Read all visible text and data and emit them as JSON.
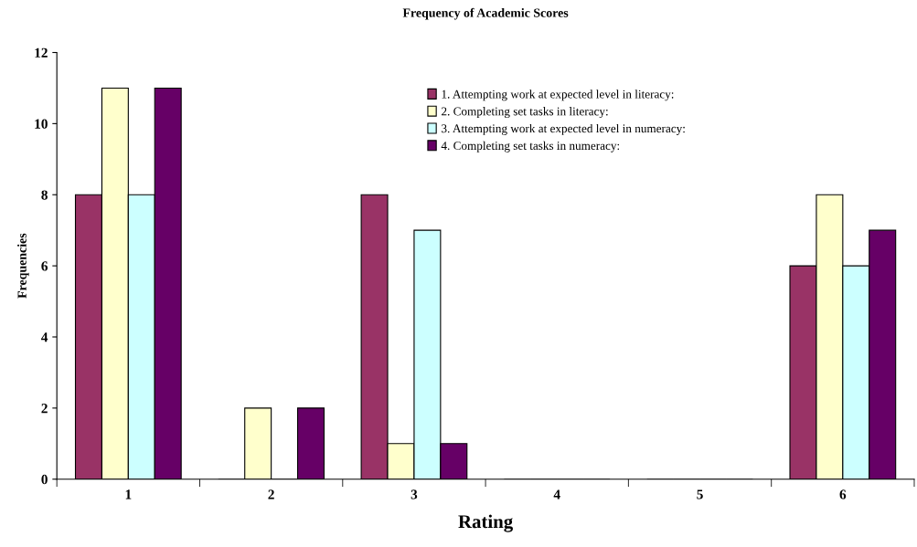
{
  "chart_data": {
    "type": "bar",
    "title": "Frequency of Academic Scores",
    "xlabel": "Rating",
    "ylabel": "Frequencies",
    "categories": [
      "1",
      "2",
      "3",
      "4",
      "5",
      "6"
    ],
    "series": [
      {
        "name": "1. Attempting work at expected level in literacy:",
        "color": "#993366",
        "values": [
          8,
          0,
          8,
          0,
          0,
          6
        ]
      },
      {
        "name": "2. Completing set tasks in literacy:",
        "color": "#ffffcc",
        "values": [
          11,
          2,
          1,
          0,
          0,
          8
        ]
      },
      {
        "name": "3. Attempting work at expected level in numeracy:",
        "color": "#ccffff",
        "values": [
          8,
          0,
          7,
          0,
          0,
          6
        ]
      },
      {
        "name": "4. Completing set tasks in numeracy:",
        "color": "#660066",
        "values": [
          11,
          2,
          1,
          0,
          0,
          7
        ]
      }
    ],
    "ylim": [
      0,
      12
    ],
    "yticks": [
      0,
      2,
      4,
      6,
      8,
      10,
      12
    ],
    "grid": false,
    "legend": "top right"
  }
}
